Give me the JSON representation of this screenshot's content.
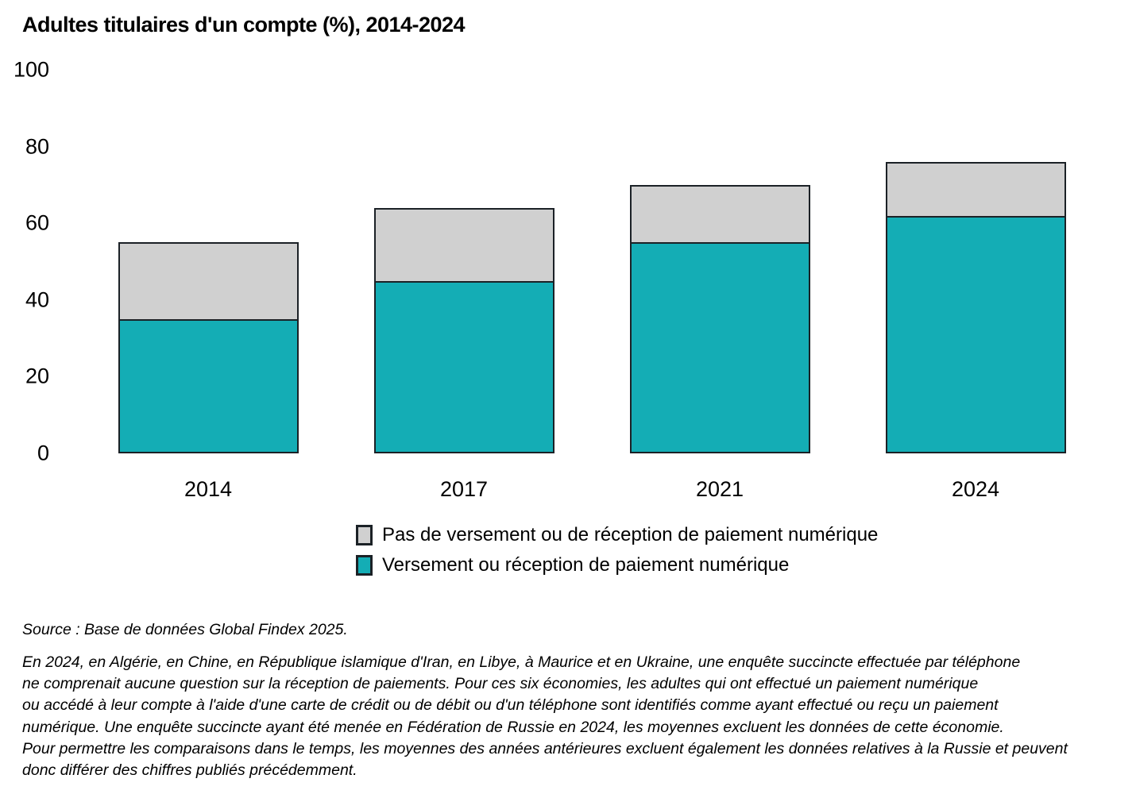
{
  "title": "Adultes titulaires d'un compte (%), 2014-2024",
  "source": "Source : Base de données Global Findex 2025.",
  "footnote_lines": [
    "En 2024, en Algérie, en Chine, en République islamique d'Iran, en Libye, à Maurice et en Ukraine, une enquête succincte effectuée par téléphone",
    "ne comprenait aucune question sur la réception de paiements. Pour ces six économies, les adultes qui ont effectué un paiement numérique",
    "ou accédé à leur compte à l'aide d'une carte de crédit ou de débit ou d'un téléphone sont identifiés comme ayant effectué ou reçu un paiement",
    "numérique. Une enquête succincte ayant été menée en Fédération de Russie en 2024, les moyennes excluent les données de cette économie.",
    "Pour permettre les comparaisons dans le temps, les moyennes des années antérieures excluent également les données relatives à la Russie et peuvent",
    "donc différer des chiffres publiés précédemment."
  ],
  "legend": [
    {
      "label": "Pas de versement ou de réception de paiement numérique",
      "color": "#d0d0d0"
    },
    {
      "label": "Versement ou réception de paiement numérique",
      "color": "#14adb5"
    }
  ],
  "colors": {
    "digital_fill": "#14adb5",
    "no_digital_fill": "#d0d0d0",
    "bar_border": "#1b2126",
    "text": "#000000"
  },
  "chart_data": {
    "type": "bar",
    "stacked": true,
    "title": "Adultes titulaires d'un compte (%), 2014-2024",
    "categories": [
      "2014",
      "2017",
      "2021",
      "2024"
    ],
    "series": [
      {
        "name": "Versement ou réception de paiement numérique",
        "color": "#14adb5",
        "values": [
          35,
          45,
          55,
          62
        ]
      },
      {
        "name": "Pas de versement ou de réception de paiement numérique",
        "color": "#d0d0d0",
        "values": [
          20,
          19,
          15,
          14
        ]
      }
    ],
    "account_totals": [
      55,
      64,
      70,
      76
    ],
    "xlabel": "",
    "ylabel": "",
    "ylim": [
      0,
      100
    ],
    "yticks": [
      0,
      20,
      40,
      60,
      80,
      100
    ],
    "grid": false,
    "legend_position": "bottom"
  }
}
